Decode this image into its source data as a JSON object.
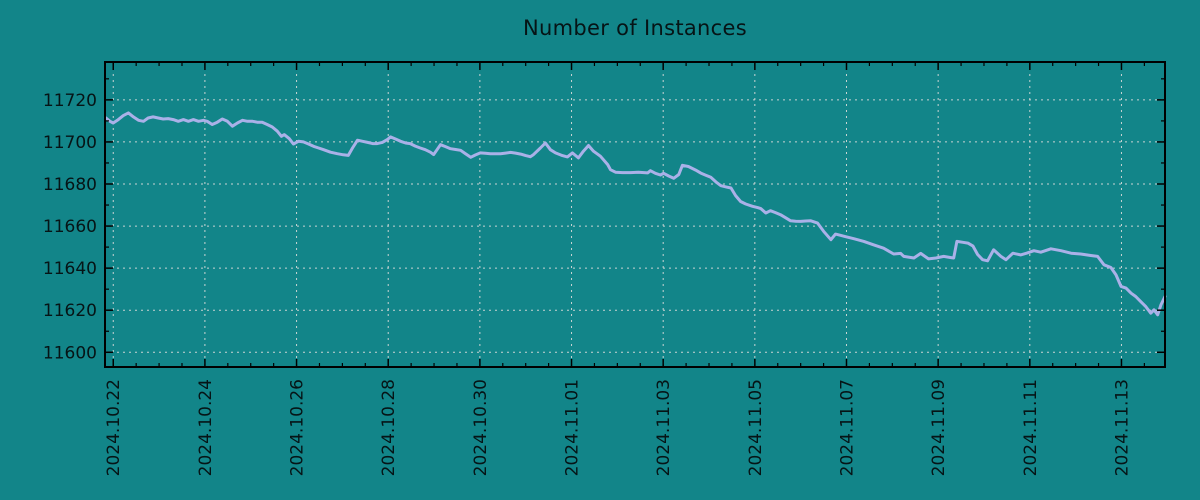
{
  "colors": {
    "background": "#128589",
    "line": "#aab1e8",
    "grid": "#c9d4d3",
    "axis": "#000000",
    "text": "#061416"
  },
  "chart_data": {
    "type": "line",
    "title": "Number of Instances",
    "xlabel": "",
    "ylabel": "",
    "legend": "none",
    "grid": "dashed-major-both-axes",
    "x_unit": "days since 2024-10-22",
    "xlim": [
      -0.18,
      22.95
    ],
    "ylim": [
      11593,
      11738
    ],
    "x_tick_days": [
      0,
      2,
      4,
      6,
      8,
      10,
      12,
      14,
      16,
      18,
      20,
      22
    ],
    "x_tick_labels": [
      "2024.10.22",
      "2024.10.24",
      "2024.10.26",
      "2024.10.28",
      "2024.10.30",
      "2024.11.01",
      "2024.11.03",
      "2024.11.05",
      "2024.11.07",
      "2024.11.09",
      "2024.11.11",
      "2024.11.13"
    ],
    "x_minor_step": 0.5,
    "y_ticks": [
      11600,
      11620,
      11640,
      11660,
      11680,
      11700,
      11720
    ],
    "y_tick_labels": [
      "11600",
      "11620",
      "11640",
      "11660",
      "11680",
      "11700",
      "11720"
    ],
    "y_minor_step": 10,
    "points": [
      [
        -0.17,
        11711.5
      ],
      [
        -0.07,
        11709.8
      ],
      [
        0.0,
        11709.0
      ],
      [
        0.11,
        11710.6
      ],
      [
        0.22,
        11712.5
      ],
      [
        0.33,
        11713.8
      ],
      [
        0.44,
        11711.9
      ],
      [
        0.55,
        11710.3
      ],
      [
        0.66,
        11709.8
      ],
      [
        0.76,
        11711.4
      ],
      [
        0.87,
        11711.9
      ],
      [
        0.98,
        11711.4
      ],
      [
        1.09,
        11710.9
      ],
      [
        1.2,
        11711.1
      ],
      [
        1.31,
        11710.6
      ],
      [
        1.42,
        11709.8
      ],
      [
        1.53,
        11710.6
      ],
      [
        1.64,
        11709.8
      ],
      [
        1.75,
        11710.6
      ],
      [
        1.86,
        11709.8
      ],
      [
        1.97,
        11710.3
      ],
      [
        2.05,
        11709.8
      ],
      [
        2.16,
        11708.3
      ],
      [
        2.27,
        11709.4
      ],
      [
        2.38,
        11710.9
      ],
      [
        2.49,
        11709.8
      ],
      [
        2.6,
        11707.5
      ],
      [
        2.71,
        11709.0
      ],
      [
        2.82,
        11710.3
      ],
      [
        2.93,
        11709.8
      ],
      [
        3.04,
        11709.8
      ],
      [
        3.14,
        11709.4
      ],
      [
        3.25,
        11709.4
      ],
      [
        3.36,
        11708.3
      ],
      [
        3.47,
        11707.1
      ],
      [
        3.58,
        11705.1
      ],
      [
        3.67,
        11702.7
      ],
      [
        3.73,
        11703.5
      ],
      [
        3.84,
        11701.6
      ],
      [
        3.93,
        11699.0
      ],
      [
        4.04,
        11700.3
      ],
      [
        4.15,
        11700.0
      ],
      [
        4.26,
        11699.0
      ],
      [
        4.37,
        11697.9
      ],
      [
        4.48,
        11697.1
      ],
      [
        4.59,
        11696.3
      ],
      [
        4.74,
        11695.1
      ],
      [
        4.89,
        11694.4
      ],
      [
        5.02,
        11693.9
      ],
      [
        5.13,
        11693.6
      ],
      [
        5.22,
        11697.1
      ],
      [
        5.33,
        11700.8
      ],
      [
        5.44,
        11700.3
      ],
      [
        5.55,
        11699.8
      ],
      [
        5.66,
        11699.2
      ],
      [
        5.76,
        11699.2
      ],
      [
        5.87,
        11699.8
      ],
      [
        5.98,
        11701.1
      ],
      [
        6.05,
        11702.4
      ],
      [
        6.16,
        11701.4
      ],
      [
        6.27,
        11700.3
      ],
      [
        6.38,
        11699.5
      ],
      [
        6.48,
        11699.2
      ],
      [
        6.59,
        11698.0
      ],
      [
        6.7,
        11697.1
      ],
      [
        6.81,
        11696.3
      ],
      [
        6.92,
        11695.1
      ],
      [
        6.99,
        11694.0
      ],
      [
        7.07,
        11696.5
      ],
      [
        7.14,
        11698.7
      ],
      [
        7.25,
        11697.8
      ],
      [
        7.36,
        11696.8
      ],
      [
        7.47,
        11696.4
      ],
      [
        7.58,
        11696.0
      ],
      [
        7.69,
        11694.3
      ],
      [
        7.8,
        11692.7
      ],
      [
        7.9,
        11693.8
      ],
      [
        8.01,
        11694.8
      ],
      [
        8.12,
        11694.6
      ],
      [
        8.23,
        11694.4
      ],
      [
        8.34,
        11694.4
      ],
      [
        8.45,
        11694.4
      ],
      [
        8.56,
        11694.7
      ],
      [
        8.67,
        11695.0
      ],
      [
        8.78,
        11694.7
      ],
      [
        8.89,
        11694.2
      ],
      [
        9.0,
        11693.5
      ],
      [
        9.1,
        11693.0
      ],
      [
        9.17,
        11694.0
      ],
      [
        9.32,
        11697.1
      ],
      [
        9.43,
        11699.5
      ],
      [
        9.54,
        11696.3
      ],
      [
        9.65,
        11694.8
      ],
      [
        9.8,
        11693.5
      ],
      [
        9.91,
        11692.9
      ],
      [
        10.02,
        11694.8
      ],
      [
        10.15,
        11692.4
      ],
      [
        10.26,
        11695.6
      ],
      [
        10.37,
        11698.3
      ],
      [
        10.48,
        11695.6
      ],
      [
        10.63,
        11693.2
      ],
      [
        10.79,
        11689.2
      ],
      [
        10.85,
        11686.8
      ],
      [
        10.96,
        11685.6
      ],
      [
        11.11,
        11685.4
      ],
      [
        11.29,
        11685.4
      ],
      [
        11.46,
        11685.6
      ],
      [
        11.66,
        11685.3
      ],
      [
        11.72,
        11686.3
      ],
      [
        11.83,
        11685.1
      ],
      [
        11.94,
        11684.3
      ],
      [
        12.01,
        11685.1
      ],
      [
        12.12,
        11683.8
      ],
      [
        12.23,
        11682.7
      ],
      [
        12.34,
        11684.5
      ],
      [
        12.42,
        11688.9
      ],
      [
        12.55,
        11688.3
      ],
      [
        12.71,
        11686.6
      ],
      [
        12.82,
        11685.2
      ],
      [
        12.93,
        11684.2
      ],
      [
        13.04,
        11683.2
      ],
      [
        13.15,
        11681.0
      ],
      [
        13.26,
        11679.2
      ],
      [
        13.37,
        11678.6
      ],
      [
        13.48,
        11678.1
      ],
      [
        13.58,
        11674.5
      ],
      [
        13.69,
        11671.7
      ],
      [
        13.8,
        11670.5
      ],
      [
        13.95,
        11669.4
      ],
      [
        14.06,
        11668.8
      ],
      [
        14.13,
        11668.3
      ],
      [
        14.24,
        11666.2
      ],
      [
        14.34,
        11667.3
      ],
      [
        14.45,
        11666.4
      ],
      [
        14.56,
        11665.4
      ],
      [
        14.67,
        11664.0
      ],
      [
        14.78,
        11662.5
      ],
      [
        14.89,
        11662.3
      ],
      [
        15.0,
        11662.2
      ],
      [
        15.11,
        11662.4
      ],
      [
        15.22,
        11662.5
      ],
      [
        15.37,
        11661.4
      ],
      [
        15.5,
        11657.5
      ],
      [
        15.66,
        11653.5
      ],
      [
        15.76,
        11656.2
      ],
      [
        15.87,
        11655.6
      ],
      [
        15.96,
        11655.1
      ],
      [
        16.16,
        11654.0
      ],
      [
        16.38,
        11652.7
      ],
      [
        16.59,
        11651.1
      ],
      [
        16.81,
        11649.5
      ],
      [
        17.03,
        11646.7
      ],
      [
        17.18,
        11647.0
      ],
      [
        17.25,
        11645.6
      ],
      [
        17.47,
        11644.8
      ],
      [
        17.62,
        11647.0
      ],
      [
        17.79,
        11644.4
      ],
      [
        17.95,
        11644.8
      ],
      [
        18.12,
        11645.6
      ],
      [
        18.28,
        11645.0
      ],
      [
        18.34,
        11644.8
      ],
      [
        18.41,
        11652.7
      ],
      [
        18.54,
        11652.3
      ],
      [
        18.65,
        11651.9
      ],
      [
        18.76,
        11650.5
      ],
      [
        18.86,
        11646.5
      ],
      [
        18.97,
        11644.0
      ],
      [
        19.08,
        11643.5
      ],
      [
        19.21,
        11648.7
      ],
      [
        19.37,
        11645.6
      ],
      [
        19.48,
        11644.0
      ],
      [
        19.63,
        11647.1
      ],
      [
        19.8,
        11646.3
      ],
      [
        19.93,
        11647.1
      ],
      [
        20.09,
        11648.3
      ],
      [
        20.24,
        11647.6
      ],
      [
        20.46,
        11649.2
      ],
      [
        20.68,
        11648.3
      ],
      [
        20.9,
        11647.1
      ],
      [
        21.11,
        11646.7
      ],
      [
        21.33,
        11646.0
      ],
      [
        21.48,
        11645.6
      ],
      [
        21.62,
        11641.6
      ],
      [
        21.77,
        11640.3
      ],
      [
        21.88,
        11636.8
      ],
      [
        21.99,
        11631.3
      ],
      [
        22.1,
        11630.5
      ],
      [
        22.21,
        11628.1
      ],
      [
        22.31,
        11626.5
      ],
      [
        22.42,
        11624.1
      ],
      [
        22.53,
        11621.7
      ],
      [
        22.64,
        11618.6
      ],
      [
        22.71,
        11620.2
      ],
      [
        22.79,
        11617.8
      ],
      [
        22.86,
        11622.5
      ],
      [
        22.95,
        11626.5
      ]
    ]
  }
}
